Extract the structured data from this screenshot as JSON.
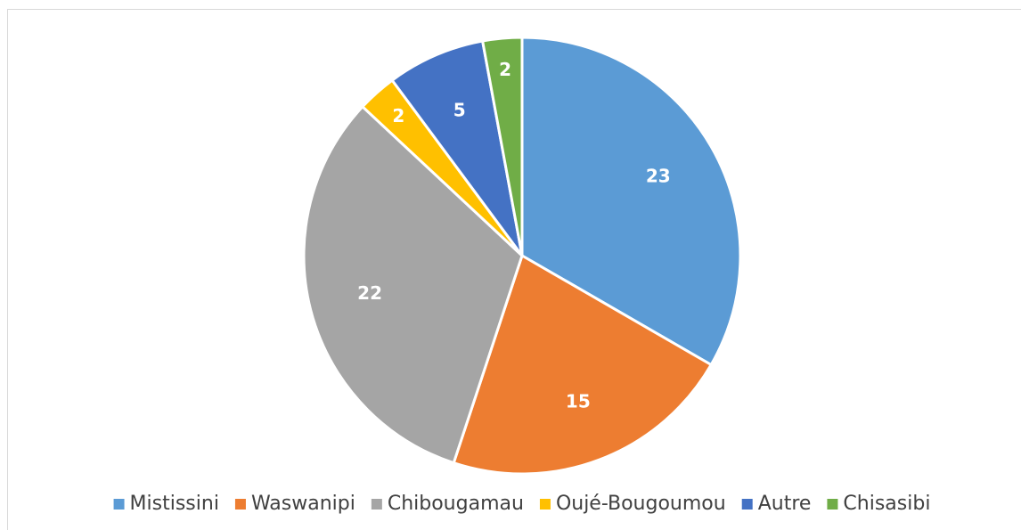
{
  "chart_data": {
    "type": "pie",
    "categories": [
      "Mistissini",
      "Waswanipi",
      "Chibougamau",
      "Oujé-Bougoumou",
      "Autre",
      "Chisasibi"
    ],
    "values": [
      23,
      15,
      22,
      2,
      5,
      2
    ],
    "colors": [
      "#5b9bd5",
      "#ed7d31",
      "#a5a5a5",
      "#ffc000",
      "#4472c4",
      "#70ad47"
    ],
    "legend": "bottom"
  }
}
